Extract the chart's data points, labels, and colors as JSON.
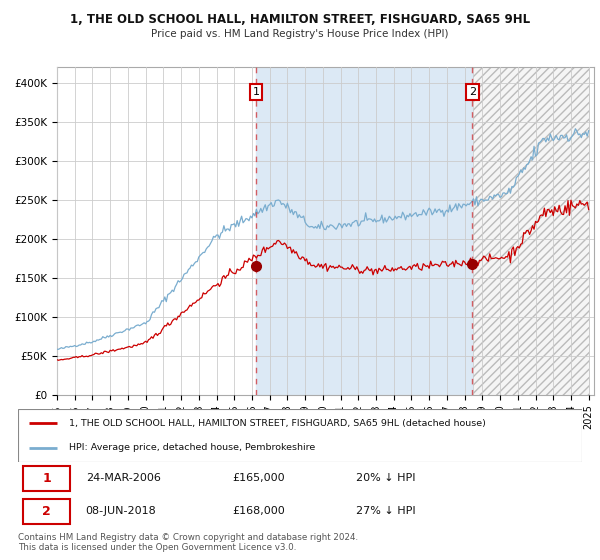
{
  "title1": "1, THE OLD SCHOOL HALL, HAMILTON STREET, FISHGUARD, SA65 9HL",
  "title2": "Price paid vs. HM Land Registry's House Price Index (HPI)",
  "legend_red": "1, THE OLD SCHOOL HALL, HAMILTON STREET, FISHGUARD, SA65 9HL (detached house)",
  "legend_blue": "HPI: Average price, detached house, Pembrokeshire",
  "row1_date": "24-MAR-2006",
  "row1_price": "£165,000",
  "row1_hpi": "20% ↓ HPI",
  "row2_date": "08-JUN-2018",
  "row2_price": "£168,000",
  "row2_hpi": "27% ↓ HPI",
  "footnote1": "Contains HM Land Registry data © Crown copyright and database right 2024.",
  "footnote2": "This data is licensed under the Open Government Licence v3.0.",
  "bg_color": "#ffffff",
  "plot_bg": "#ffffff",
  "grid_color": "#cccccc",
  "blue_fill": "#dce9f5",
  "hatch_color": "#bbbbbb",
  "red_line_color": "#cc0000",
  "blue_line_color": "#7aadcf",
  "dashed_line_color": "#cc0000",
  "marker_color": "#990000",
  "box_color": "#cc0000",
  "ylim_min": 0,
  "ylim_max": 420000,
  "year_start": 1995,
  "year_end": 2025,
  "sale1_year": 2006.22,
  "sale1_price": 165000,
  "sale2_year": 2018.44,
  "sale2_price": 168000
}
